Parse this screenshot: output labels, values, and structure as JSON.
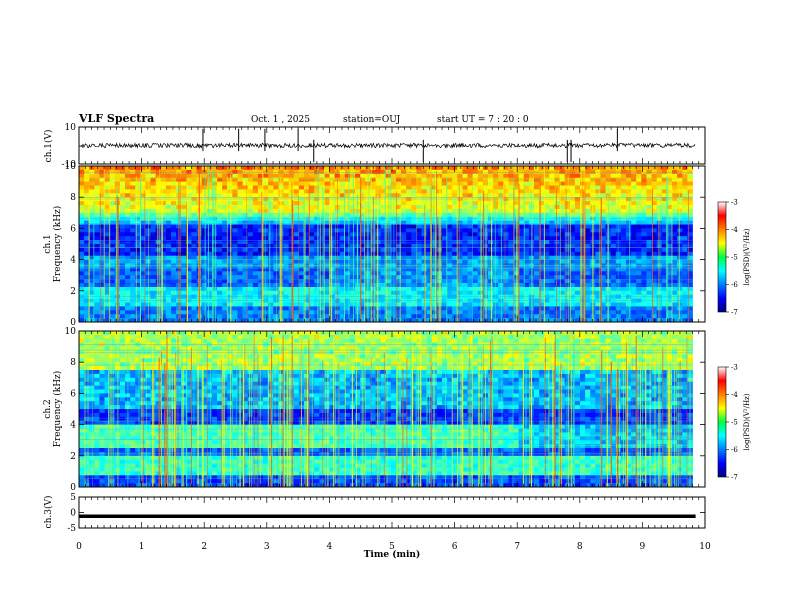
{
  "header": {
    "title": "VLF Spectra",
    "date": "Oct. 1 , 2025",
    "station": "station=OUJ",
    "start": "start UT =   7 : 20 : 0"
  },
  "chart_data": [
    {
      "id": "ch1-waveform",
      "type": "line",
      "ylabel": "ch.1(V)",
      "ylim": [
        -10,
        10
      ],
      "yticks": [
        "10",
        "-10"
      ],
      "description_values": {
        "baseline": 0,
        "typical_amplitude": 1,
        "max_spike": 9
      },
      "xlim": [
        0,
        10
      ],
      "spike_times": [
        1.98,
        2.55,
        2.97,
        3.5,
        3.75,
        5.5,
        7.8,
        7.86,
        8.6
      ]
    },
    {
      "id": "ch1-spectrogram",
      "type": "heatmap",
      "ylabel": "Frequency (kHz)",
      "channel_label": "ch.1",
      "ylim": [
        0,
        10
      ],
      "yticks": [
        "0",
        "2",
        "4",
        "6",
        "8",
        "10"
      ],
      "xlim": [
        0,
        10
      ],
      "data_end_min": 9.8,
      "colorbar": {
        "label": "log(PSD)(V²/Hz)",
        "range": [
          -7,
          -3
        ],
        "ticks": [
          "-3",
          "-4",
          "-5",
          "-6",
          "-7"
        ]
      }
    },
    {
      "id": "ch2-spectrogram",
      "type": "heatmap",
      "ylabel": "Frequency (kHz)",
      "channel_label": "ch.2",
      "ylim": [
        0,
        10
      ],
      "yticks": [
        "0",
        "2",
        "4",
        "6",
        "8",
        "10"
      ],
      "xlim": [
        0,
        10
      ],
      "data_end_min": 9.8,
      "colorbar": {
        "label": "log(PSD)(V²/Hz)",
        "range": [
          -7,
          -3
        ],
        "ticks": [
          "-3",
          "-4",
          "-5",
          "-6",
          "-7"
        ]
      }
    },
    {
      "id": "ch3-waveform",
      "type": "line",
      "ylabel": "ch.3(V)",
      "ylim": [
        -5,
        5
      ],
      "yticks": [
        "5",
        "0",
        "-5"
      ],
      "level": -1.2,
      "xlim": [
        0,
        10
      ]
    }
  ],
  "xaxis": {
    "label": "Time (min)",
    "ticks": [
      "0",
      "1",
      "2",
      "3",
      "4",
      "5",
      "6",
      "7",
      "8",
      "9",
      "10"
    ]
  }
}
